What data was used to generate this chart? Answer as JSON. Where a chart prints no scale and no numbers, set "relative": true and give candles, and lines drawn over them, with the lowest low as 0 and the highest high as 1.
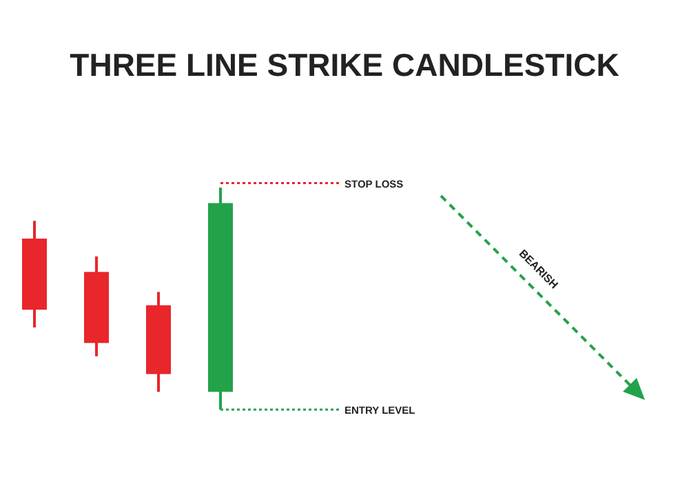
{
  "chart_data": {
    "type": "candlestick",
    "title": "THREE LINE STRIKE CANDLESTICK",
    "relative": true,
    "categories": [
      null,
      null,
      null,
      null
    ],
    "ohlc": [
      [
        0.77,
        0.85,
        0.37,
        0.45
      ],
      [
        0.62,
        0.69,
        0.24,
        0.3
      ],
      [
        0.47,
        0.53,
        0.08,
        0.16
      ],
      [
        0.08,
        1,
        0,
        0.93
      ]
    ],
    "colors": [
      "#e8262b",
      "#e8262b",
      "#e8262b",
      "#22a34a"
    ],
    "ref_lines": [
      {
        "axis": "y",
        "value": 1.02,
        "label": "STOP LOSS",
        "color": "#e8262b",
        "line_style": "dotted"
      },
      {
        "axis": "y",
        "value": 0,
        "label": "ENTRY LEVEL",
        "color": "#22a34a",
        "line_style": "dotted"
      }
    ],
    "annotations": [
      "BEARISH"
    ]
  }
}
